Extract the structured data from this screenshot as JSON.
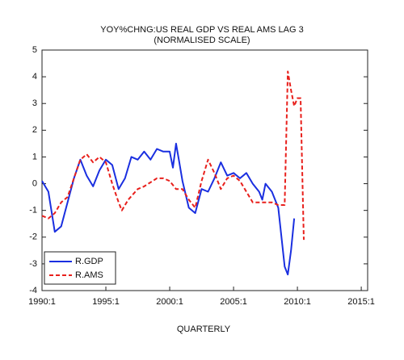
{
  "chart_data": {
    "type": "line",
    "title": "YOY%CHNG:US REAL GDP VS REAL AMS LAG 3",
    "subtitle": "(NORMALISED SCALE)",
    "x_label": "QUARTERLY",
    "xlim": [
      1990,
      2015.5
    ],
    "xticks": [
      {
        "value": 1990,
        "label": "1990:1"
      },
      {
        "value": 1995,
        "label": "1995:1"
      },
      {
        "value": 2000,
        "label": "2000:1"
      },
      {
        "value": 2005,
        "label": "2005:1"
      },
      {
        "value": 2010,
        "label": "2010:1"
      },
      {
        "value": 2015,
        "label": "2015:1"
      }
    ],
    "ylim": [
      -4,
      5
    ],
    "yticks": [
      -4,
      -3,
      -2,
      -1,
      0,
      1,
      2,
      3,
      4,
      5
    ],
    "legend": "lower-left",
    "series": [
      {
        "name": "R.GDP",
        "color": "#1a2fe0",
        "dash": false,
        "x": [
          1990.0,
          1990.5,
          1991.0,
          1991.5,
          1992.0,
          1992.5,
          1993.0,
          1993.5,
          1994.0,
          1994.5,
          1995.0,
          1995.5,
          1996.0,
          1996.5,
          1997.0,
          1997.5,
          1998.0,
          1998.5,
          1999.0,
          1999.5,
          2000.0,
          2000.25,
          2000.5,
          2000.75,
          2001.0,
          2001.5,
          2002.0,
          2002.5,
          2003.0,
          2003.5,
          2004.0,
          2004.5,
          2005.0,
          2005.5,
          2006.0,
          2006.5,
          2007.0,
          2007.25,
          2007.5,
          2008.0,
          2008.5,
          2009.0,
          2009.25,
          2009.5,
          2009.75
        ],
        "values": [
          0.1,
          -0.3,
          -1.8,
          -1.6,
          -0.7,
          0.2,
          0.9,
          0.3,
          -0.1,
          0.5,
          0.9,
          0.7,
          -0.2,
          0.2,
          1.0,
          0.9,
          1.2,
          0.9,
          1.3,
          1.2,
          1.2,
          0.6,
          1.5,
          0.8,
          0.1,
          -0.9,
          -1.1,
          -0.2,
          -0.3,
          0.2,
          0.8,
          0.3,
          0.4,
          0.2,
          0.4,
          0.0,
          -0.3,
          -0.6,
          0.0,
          -0.3,
          -0.9,
          -3.1,
          -3.4,
          -2.5,
          -1.3
        ]
      },
      {
        "name": "R.AMS",
        "color": "#e8201c",
        "dash": true,
        "x": [
          1990.0,
          1990.5,
          1991.0,
          1991.5,
          1992.0,
          1992.5,
          1993.0,
          1993.5,
          1994.0,
          1994.5,
          1995.0,
          1995.5,
          1996.0,
          1996.25,
          1996.75,
          1997.5,
          1998.0,
          1999.0,
          1999.5,
          2000.0,
          2000.5,
          2001.0,
          2001.5,
          2002.0,
          2002.5,
          2003.0,
          2003.5,
          2004.0,
          2004.5,
          2005.0,
          2005.5,
          2006.0,
          2006.5,
          2007.5,
          2008.0,
          2008.5,
          2009.0,
          2009.25,
          2009.5,
          2009.75,
          2010.0,
          2010.25,
          2010.5
        ],
        "values": [
          -1.2,
          -1.3,
          -1.1,
          -0.7,
          -0.5,
          0.2,
          0.9,
          1.1,
          0.8,
          1.0,
          0.8,
          0.0,
          -0.7,
          -1.0,
          -0.6,
          -0.2,
          -0.1,
          0.2,
          0.2,
          0.1,
          -0.2,
          -0.2,
          -0.6,
          -0.9,
          0.1,
          0.9,
          0.4,
          -0.2,
          0.2,
          0.3,
          0.1,
          -0.3,
          -0.7,
          -0.7,
          -0.7,
          -0.8,
          -0.8,
          4.2,
          3.5,
          2.9,
          3.2,
          3.2,
          -2.1
        ]
      }
    ]
  }
}
